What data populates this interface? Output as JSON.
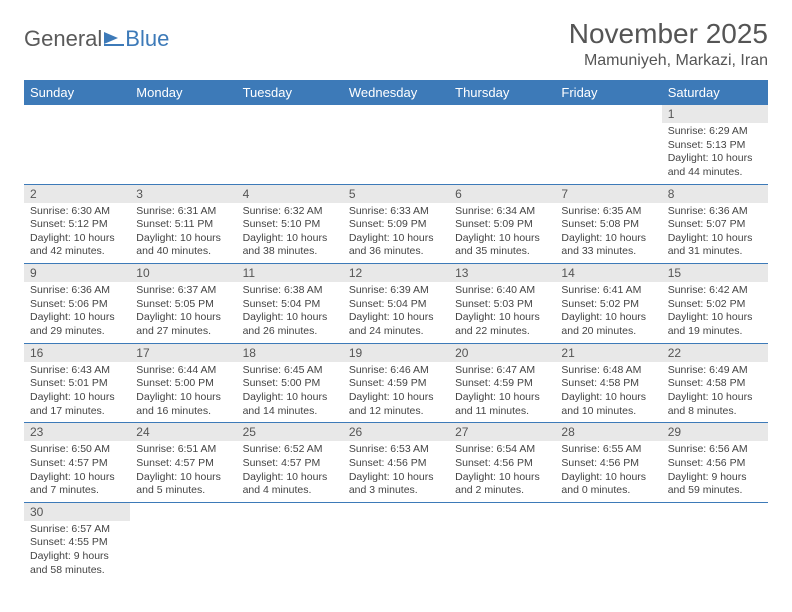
{
  "logo": {
    "text1": "General",
    "text2": "Blue"
  },
  "title": "November 2025",
  "location": "Mamuniyeh, Markazi, Iran",
  "colors": {
    "header_bg": "#3d7ab8",
    "header_fg": "#ffffff",
    "daynum_bg": "#e8e8e8",
    "border": "#3d7ab8",
    "text": "#444444"
  },
  "weekdays": [
    "Sunday",
    "Monday",
    "Tuesday",
    "Wednesday",
    "Thursday",
    "Friday",
    "Saturday"
  ],
  "weeks": [
    [
      null,
      null,
      null,
      null,
      null,
      null,
      {
        "n": "1",
        "sr": "6:29 AM",
        "ss": "5:13 PM",
        "dl": "10 hours and 44 minutes."
      }
    ],
    [
      {
        "n": "2",
        "sr": "6:30 AM",
        "ss": "5:12 PM",
        "dl": "10 hours and 42 minutes."
      },
      {
        "n": "3",
        "sr": "6:31 AM",
        "ss": "5:11 PM",
        "dl": "10 hours and 40 minutes."
      },
      {
        "n": "4",
        "sr": "6:32 AM",
        "ss": "5:10 PM",
        "dl": "10 hours and 38 minutes."
      },
      {
        "n": "5",
        "sr": "6:33 AM",
        "ss": "5:09 PM",
        "dl": "10 hours and 36 minutes."
      },
      {
        "n": "6",
        "sr": "6:34 AM",
        "ss": "5:09 PM",
        "dl": "10 hours and 35 minutes."
      },
      {
        "n": "7",
        "sr": "6:35 AM",
        "ss": "5:08 PM",
        "dl": "10 hours and 33 minutes."
      },
      {
        "n": "8",
        "sr": "6:36 AM",
        "ss": "5:07 PM",
        "dl": "10 hours and 31 minutes."
      }
    ],
    [
      {
        "n": "9",
        "sr": "6:36 AM",
        "ss": "5:06 PM",
        "dl": "10 hours and 29 minutes."
      },
      {
        "n": "10",
        "sr": "6:37 AM",
        "ss": "5:05 PM",
        "dl": "10 hours and 27 minutes."
      },
      {
        "n": "11",
        "sr": "6:38 AM",
        "ss": "5:04 PM",
        "dl": "10 hours and 26 minutes."
      },
      {
        "n": "12",
        "sr": "6:39 AM",
        "ss": "5:04 PM",
        "dl": "10 hours and 24 minutes."
      },
      {
        "n": "13",
        "sr": "6:40 AM",
        "ss": "5:03 PM",
        "dl": "10 hours and 22 minutes."
      },
      {
        "n": "14",
        "sr": "6:41 AM",
        "ss": "5:02 PM",
        "dl": "10 hours and 20 minutes."
      },
      {
        "n": "15",
        "sr": "6:42 AM",
        "ss": "5:02 PM",
        "dl": "10 hours and 19 minutes."
      }
    ],
    [
      {
        "n": "16",
        "sr": "6:43 AM",
        "ss": "5:01 PM",
        "dl": "10 hours and 17 minutes."
      },
      {
        "n": "17",
        "sr": "6:44 AM",
        "ss": "5:00 PM",
        "dl": "10 hours and 16 minutes."
      },
      {
        "n": "18",
        "sr": "6:45 AM",
        "ss": "5:00 PM",
        "dl": "10 hours and 14 minutes."
      },
      {
        "n": "19",
        "sr": "6:46 AM",
        "ss": "4:59 PM",
        "dl": "10 hours and 12 minutes."
      },
      {
        "n": "20",
        "sr": "6:47 AM",
        "ss": "4:59 PM",
        "dl": "10 hours and 11 minutes."
      },
      {
        "n": "21",
        "sr": "6:48 AM",
        "ss": "4:58 PM",
        "dl": "10 hours and 10 minutes."
      },
      {
        "n": "22",
        "sr": "6:49 AM",
        "ss": "4:58 PM",
        "dl": "10 hours and 8 minutes."
      }
    ],
    [
      {
        "n": "23",
        "sr": "6:50 AM",
        "ss": "4:57 PM",
        "dl": "10 hours and 7 minutes."
      },
      {
        "n": "24",
        "sr": "6:51 AM",
        "ss": "4:57 PM",
        "dl": "10 hours and 5 minutes."
      },
      {
        "n": "25",
        "sr": "6:52 AM",
        "ss": "4:57 PM",
        "dl": "10 hours and 4 minutes."
      },
      {
        "n": "26",
        "sr": "6:53 AM",
        "ss": "4:56 PM",
        "dl": "10 hours and 3 minutes."
      },
      {
        "n": "27",
        "sr": "6:54 AM",
        "ss": "4:56 PM",
        "dl": "10 hours and 2 minutes."
      },
      {
        "n": "28",
        "sr": "6:55 AM",
        "ss": "4:56 PM",
        "dl": "10 hours and 0 minutes."
      },
      {
        "n": "29",
        "sr": "6:56 AM",
        "ss": "4:56 PM",
        "dl": "9 hours and 59 minutes."
      }
    ],
    [
      {
        "n": "30",
        "sr": "6:57 AM",
        "ss": "4:55 PM",
        "dl": "9 hours and 58 minutes."
      },
      null,
      null,
      null,
      null,
      null,
      null
    ]
  ]
}
